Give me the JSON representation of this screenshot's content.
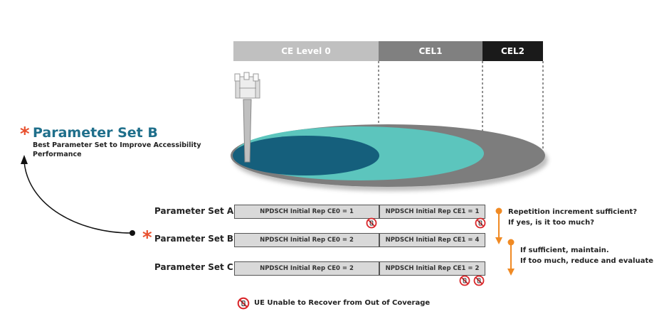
{
  "levels": [
    {
      "label": "CE Level 0",
      "color": "#c0c0c0"
    },
    {
      "label": "CEL1",
      "color": "#808080"
    },
    {
      "label": "CEL2",
      "color": "#1a1a1a"
    }
  ],
  "callout": {
    "title": "Parameter Set B",
    "subtitle": "Best Parameter Set to Improve Accessibility Performance"
  },
  "rows": [
    {
      "label": "Parameter Set A",
      "ce0": "NPDSCH Initial Rep CE0 = 1",
      "ce1": "NPDSCH Initial Rep CE1 = 1"
    },
    {
      "label": "Parameter Set B",
      "ce0": "NPDSCH Initial Rep CE0 = 2",
      "ce1": "NPDSCH Initial Rep CE1 = 4"
    },
    {
      "label": "Parameter Set C",
      "ce0": "NPDSCH Initial Rep CE0 = 2",
      "ce1": "NPDSCH Initial Rep CE1 = 2"
    }
  ],
  "notes": {
    "first": [
      "Repetition increment sufficient?",
      "If yes, is it too much?"
    ],
    "second": [
      "If sufficient, maintain.",
      "If too much, reduce and evaluate"
    ]
  },
  "legend": {
    "text": "UE Unable to Recover from Out of Coverage",
    "icon": "prohibited-icon"
  },
  "colors": {
    "orange": "#f08a24",
    "teal": "#5cc5bd",
    "dark_teal": "#155f7c",
    "gray_ellipse": "#7d7d7d",
    "red": "#d9262a"
  }
}
